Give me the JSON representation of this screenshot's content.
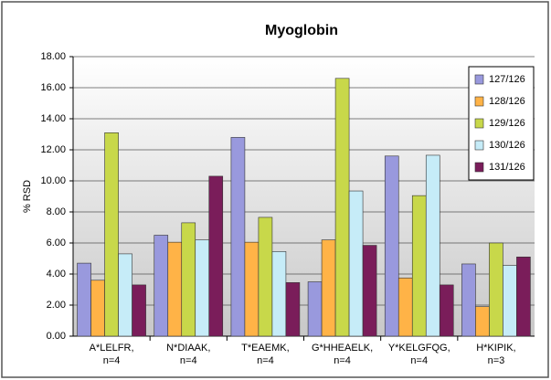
{
  "chart_data": {
    "type": "bar",
    "title": "Myoglobin",
    "y_label": "% RSD",
    "categories": [
      [
        "A*LELFR,",
        "n=4"
      ],
      [
        "N*DIAAK,",
        "n=4"
      ],
      [
        "T*EAEMK,",
        "n=4"
      ],
      [
        "G*HHEAELK,",
        "n=4"
      ],
      [
        "Y*KELGFQG,",
        "n=4"
      ],
      [
        "H*KIPIK,",
        "n=3"
      ]
    ],
    "series": [
      {
        "name": "127/126",
        "color": "#9999dd",
        "values": [
          4.7,
          6.5,
          12.8,
          3.5,
          11.6,
          4.65
        ]
      },
      {
        "name": "128/126",
        "color": "#ffb347",
        "values": [
          3.6,
          6.05,
          6.05,
          6.2,
          3.75,
          1.9
        ]
      },
      {
        "name": "129/126",
        "color": "#c8d84a",
        "values": [
          13.1,
          7.3,
          7.65,
          16.6,
          9.05,
          6.0
        ]
      },
      {
        "name": "130/126",
        "color": "#c6ecf8",
        "values": [
          5.3,
          6.2,
          5.45,
          9.35,
          11.65,
          4.55
        ]
      },
      {
        "name": "131/126",
        "color": "#7a1d5a",
        "values": [
          3.3,
          10.3,
          3.45,
          5.85,
          3.3,
          5.1
        ]
      }
    ],
    "ylim": [
      0,
      18
    ],
    "yticks": [
      {
        "value": 0,
        "label": "0.00"
      },
      {
        "value": 2,
        "label": "2.00"
      },
      {
        "value": 4,
        "label": "4.00"
      },
      {
        "value": 6,
        "label": "6.00"
      },
      {
        "value": 8,
        "label": "8.00"
      },
      {
        "value": 10,
        "label": "10.00"
      },
      {
        "value": 12,
        "label": "12.00"
      },
      {
        "value": 14,
        "label": "14.00"
      },
      {
        "value": 16,
        "label": "16.00"
      },
      {
        "value": 18,
        "label": "18.00"
      }
    ],
    "grid": true,
    "legend": "top-right"
  }
}
